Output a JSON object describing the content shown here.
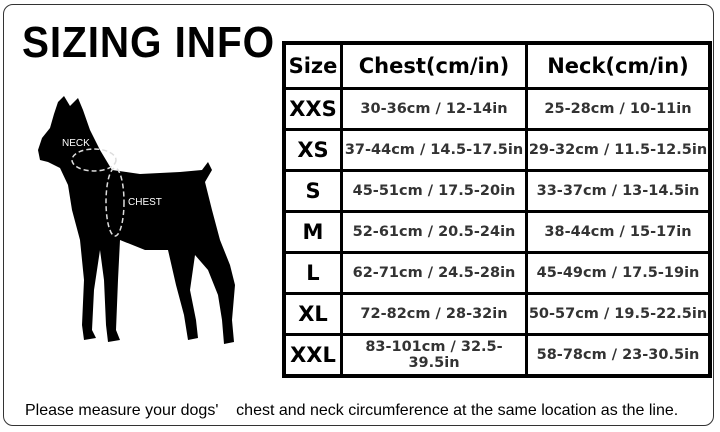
{
  "title": "SIZING INFO",
  "table": {
    "headers": [
      "Size",
      "Chest(cm/in)",
      "Neck(cm/in)"
    ],
    "rows": [
      {
        "size": "XXS",
        "chest": "30-36cm / 12-14in",
        "neck": "25-28cm / 10-11in"
      },
      {
        "size": "XS",
        "chest": "37-44cm / 14.5-17.5in",
        "neck": "29-32cm / 11.5-12.5in"
      },
      {
        "size": "S",
        "chest": "45-51cm / 17.5-20in",
        "neck": "33-37cm / 13-14.5in"
      },
      {
        "size": "M",
        "chest": "52-61cm / 20.5-24in",
        "neck": "38-44cm / 15-17in"
      },
      {
        "size": "L",
        "chest": "62-71cm / 24.5-28in",
        "neck": "45-49cm / 17.5-19in"
      },
      {
        "size": "XL",
        "chest": "72-82cm / 28-32in",
        "neck": "50-57cm / 19.5-22.5in"
      },
      {
        "size": "XXL",
        "chest": "83-101cm / 32.5-39.5in",
        "neck": "58-78cm / 23-30.5in"
      }
    ]
  },
  "diagram": {
    "neck_label": "NECK",
    "chest_label": "CHEST"
  },
  "footer": "Please measure your dogs'    chest and neck circumference at the same location as the line."
}
